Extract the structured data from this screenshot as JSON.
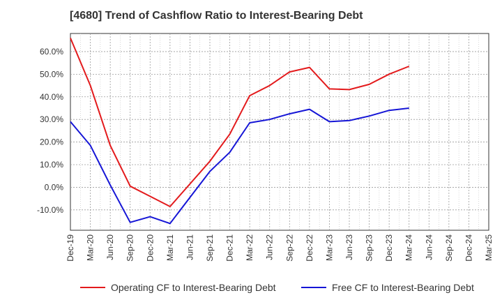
{
  "title": "[4680]  Trend of Cashflow Ratio to Interest-Bearing Debt",
  "chart_data": {
    "type": "line",
    "title": "[4680]  Trend of Cashflow Ratio to Interest-Bearing Debt",
    "xlabel": "",
    "ylabel": "",
    "ylim": [
      -19,
      68
    ],
    "y_ticks": [
      -10,
      0,
      10,
      20,
      30,
      40,
      50,
      60
    ],
    "y_tick_labels": [
      "-10.0%",
      "0.0%",
      "10.0%",
      "20.0%",
      "30.0%",
      "40.0%",
      "50.0%",
      "60.0%"
    ],
    "categories": [
      "Dec-19",
      "Mar-20",
      "Jun-20",
      "Sep-20",
      "Dec-20",
      "Mar-21",
      "Jun-21",
      "Sep-21",
      "Dec-21",
      "Mar-22",
      "Jun-22",
      "Sep-22",
      "Dec-22",
      "Mar-23",
      "Jun-23",
      "Sep-23",
      "Dec-23",
      "Mar-24",
      "Jun-24",
      "Sep-24",
      "Dec-24",
      "Mar-25"
    ],
    "grid": true,
    "legend_position": "bottom",
    "series": [
      {
        "name": "Operating CF to Interest-Bearing Debt",
        "color": "#e31a1c",
        "values": [
          66.0,
          45.0,
          18.5,
          0.5,
          -4.0,
          -8.5,
          1.5,
          11.5,
          23.5,
          40.5,
          45.0,
          51.0,
          53.0,
          43.5,
          43.2,
          45.5,
          50.0,
          53.5,
          null,
          null,
          null,
          null
        ]
      },
      {
        "name": "Free CF to Interest-Bearing Debt",
        "color": "#1515d6",
        "values": [
          29.0,
          18.5,
          1.0,
          -15.5,
          -13.0,
          -16.0,
          -4.5,
          7.0,
          15.5,
          28.5,
          30.0,
          32.5,
          34.5,
          29.0,
          29.5,
          31.5,
          34.0,
          35.0,
          null,
          null,
          null,
          null
        ]
      }
    ]
  }
}
